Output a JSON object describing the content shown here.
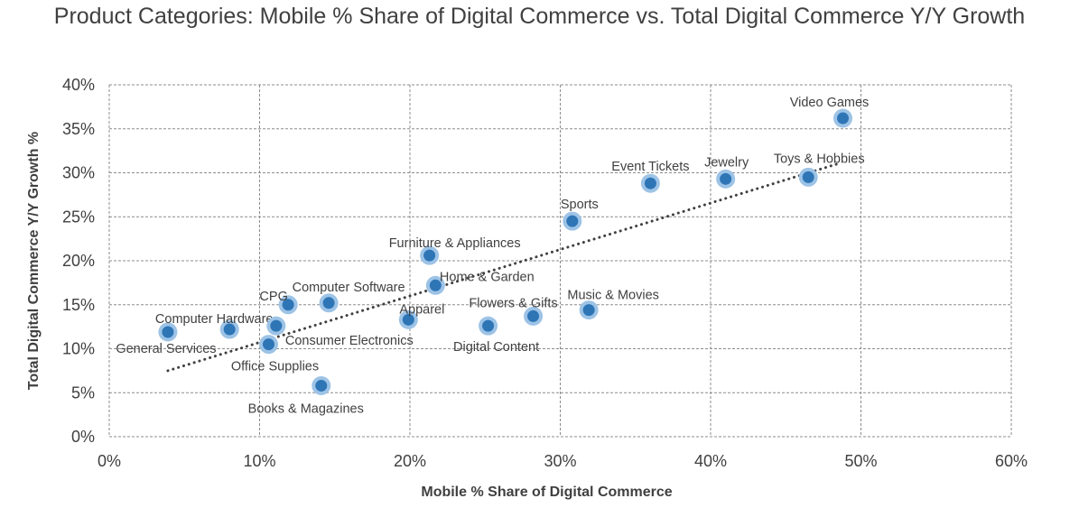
{
  "chart_data": {
    "type": "scatter",
    "title": "Product Categories: Mobile % Share of Digital Commerce vs. Total Digital Commerce Y/Y Growth",
    "xlabel": "Mobile % Share of Digital Commerce",
    "ylabel": "Total Digital Commerce Y/Y Growth %",
    "xlim": [
      0,
      60
    ],
    "ylim": [
      0,
      40
    ],
    "x_ticks": [
      "0%",
      "10%",
      "20%",
      "30%",
      "40%",
      "50%",
      "60%"
    ],
    "y_ticks": [
      "0%",
      "5%",
      "10%",
      "15%",
      "20%",
      "25%",
      "30%",
      "35%",
      "40%"
    ],
    "grid": true,
    "legend": "none",
    "colors": {
      "marker": "#2E75B6",
      "marker_halo": "#9DC3E6",
      "trendline": "#404040"
    },
    "points": [
      {
        "label": "General Services",
        "x": 3.9,
        "y": 11.9
      },
      {
        "label": "Computer Hardware",
        "x": 8.0,
        "y": 12.2
      },
      {
        "label": "Office Supplies",
        "x": 10.6,
        "y": 10.5
      },
      {
        "label": "Consumer Electronics",
        "x": 11.1,
        "y": 12.6
      },
      {
        "label": "CPG",
        "x": 11.9,
        "y": 15.0
      },
      {
        "label": "Books & Magazines",
        "x": 14.1,
        "y": 5.8
      },
      {
        "label": "Computer Software",
        "x": 14.6,
        "y": 15.2
      },
      {
        "label": "Apparel",
        "x": 19.9,
        "y": 13.3
      },
      {
        "label": "Furniture & Appliances",
        "x": 21.3,
        "y": 20.6
      },
      {
        "label": "Home & Garden",
        "x": 21.7,
        "y": 17.2
      },
      {
        "label": "Digital Content",
        "x": 25.2,
        "y": 12.6
      },
      {
        "label": "Flowers & Gifts",
        "x": 28.2,
        "y": 13.7
      },
      {
        "label": "Music & Movies",
        "x": 31.9,
        "y": 14.4
      },
      {
        "label": "Sports",
        "x": 30.8,
        "y": 24.5
      },
      {
        "label": "Event Tickets",
        "x": 36.0,
        "y": 28.8
      },
      {
        "label": "Jewelry",
        "x": 41.0,
        "y": 29.3
      },
      {
        "label": "Toys & Hobbies",
        "x": 46.5,
        "y": 29.5
      },
      {
        "label": "Video Games",
        "x": 48.8,
        "y": 36.2
      }
    ],
    "trendline": {
      "type": "linear",
      "style": "dotted",
      "x": [
        3.9,
        48.6
      ],
      "y": [
        7.5,
        31.1
      ]
    }
  }
}
